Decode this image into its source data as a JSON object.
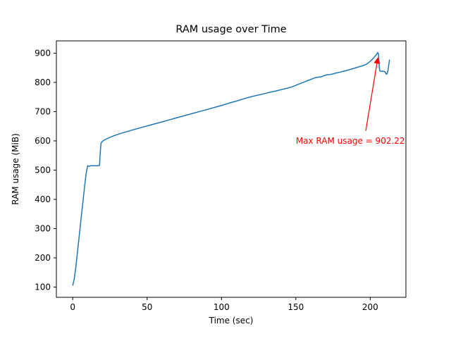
{
  "figure": {
    "background": "#ffffff"
  },
  "chart_data": {
    "type": "line",
    "title": "RAM usage over Time",
    "xlabel": "Time (sec)",
    "ylabel": "RAM usage (MiB)",
    "xlim": [
      -11,
      224
    ],
    "ylim": [
      65,
      942
    ],
    "x_ticks": [
      0,
      50,
      100,
      150,
      200
    ],
    "y_ticks": [
      100,
      200,
      300,
      400,
      500,
      600,
      700,
      800,
      900
    ],
    "grid": false,
    "legend_position": "none",
    "line_color": "#1f77b4",
    "line_width": 1.5,
    "max_value": 902.22,
    "annotation": {
      "text": "Max RAM usage = 902.22",
      "color": "#ff0000",
      "text_pos": [
        150,
        600
      ],
      "arrow_from": [
        197,
        634
      ],
      "arrow_to": [
        205.2,
        886
      ]
    },
    "series": [
      {
        "name": "RAM usage",
        "points": [
          [
            0,
            105
          ],
          [
            1,
            128
          ],
          [
            2,
            165
          ],
          [
            4,
            258
          ],
          [
            6,
            352
          ],
          [
            8,
            445
          ],
          [
            9,
            488
          ],
          [
            10,
            515
          ],
          [
            11,
            513
          ],
          [
            12,
            515
          ],
          [
            17,
            515
          ],
          [
            18,
            516
          ],
          [
            18.5,
            560
          ],
          [
            19,
            592
          ],
          [
            20,
            599
          ],
          [
            22,
            605
          ],
          [
            25,
            612
          ],
          [
            28,
            618
          ],
          [
            32,
            625
          ],
          [
            36,
            631
          ],
          [
            40,
            637
          ],
          [
            45,
            644
          ],
          [
            50,
            651
          ],
          [
            55,
            658
          ],
          [
            60,
            665
          ],
          [
            65,
            672
          ],
          [
            70,
            679
          ],
          [
            75,
            686
          ],
          [
            80,
            693
          ],
          [
            85,
            700
          ],
          [
            90,
            707
          ],
          [
            95,
            714
          ],
          [
            100,
            721
          ],
          [
            105,
            729
          ],
          [
            110,
            736
          ],
          [
            115,
            744
          ],
          [
            120,
            751
          ],
          [
            124,
            756
          ],
          [
            127,
            759
          ],
          [
            130,
            763
          ],
          [
            134,
            768
          ],
          [
            137,
            771
          ],
          [
            140,
            775
          ],
          [
            144,
            780
          ],
          [
            147,
            784
          ],
          [
            150,
            790
          ],
          [
            153,
            796
          ],
          [
            156,
            802
          ],
          [
            159,
            808
          ],
          [
            161,
            812
          ],
          [
            163,
            816
          ],
          [
            165,
            818
          ],
          [
            167,
            819
          ],
          [
            169,
            823
          ],
          [
            171,
            826
          ],
          [
            173,
            827
          ],
          [
            175,
            829
          ],
          [
            177,
            832
          ],
          [
            179,
            834
          ],
          [
            181,
            837
          ],
          [
            183,
            839
          ],
          [
            185,
            842
          ],
          [
            187,
            845
          ],
          [
            189,
            848
          ],
          [
            191,
            851
          ],
          [
            193,
            854
          ],
          [
            195,
            857
          ],
          [
            197,
            861
          ],
          [
            198,
            864
          ],
          [
            199,
            868
          ],
          [
            200,
            872
          ],
          [
            201,
            877
          ],
          [
            202,
            882
          ],
          [
            203,
            888
          ],
          [
            204,
            894
          ],
          [
            205,
            902.22
          ],
          [
            205.6,
            896
          ],
          [
            206,
            862
          ],
          [
            206.4,
            840
          ],
          [
            207,
            838
          ],
          [
            209,
            838
          ],
          [
            210,
            836
          ],
          [
            210.8,
            828
          ],
          [
            211.4,
            830
          ],
          [
            212,
            843
          ],
          [
            212.6,
            864
          ],
          [
            213,
            878
          ]
        ]
      }
    ]
  }
}
